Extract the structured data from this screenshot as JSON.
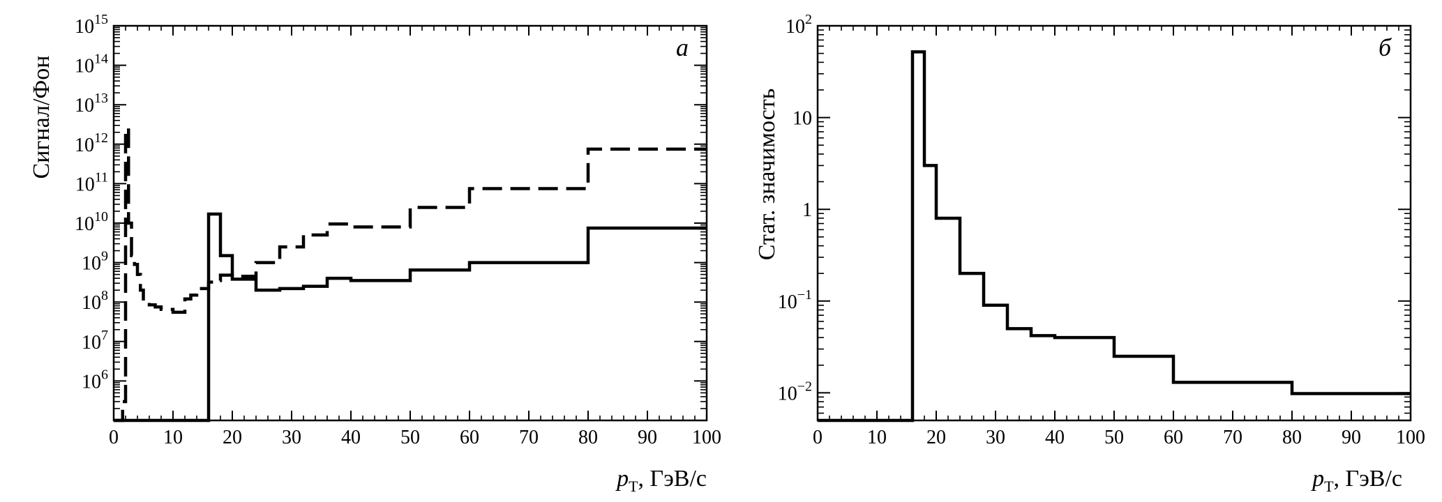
{
  "chart_data": [
    {
      "type": "line",
      "panel_label": "a",
      "xlabel": "p",
      "xlabel_sub": "T",
      "xlabel_unit": ", ГэВ/с",
      "ylabel": "Сигнал/Фон",
      "xlim": [
        0,
        100
      ],
      "ylim": [
        100000,
        1000000000000000
      ],
      "yscale": "log",
      "grid": false,
      "legend": "none",
      "x_ticks": [
        "0",
        "10",
        "20",
        "30",
        "40",
        "50",
        "60",
        "70",
        "80",
        "90",
        "100"
      ],
      "y_ticks": [
        {
          "base": "10",
          "exp": "6"
        },
        {
          "base": "10",
          "exp": "7"
        },
        {
          "base": "10",
          "exp": "8"
        },
        {
          "base": "10",
          "exp": "9"
        },
        {
          "base": "10",
          "exp": "10"
        },
        {
          "base": "10",
          "exp": "11"
        },
        {
          "base": "10",
          "exp": "12"
        },
        {
          "base": "10",
          "exp": "13"
        },
        {
          "base": "10",
          "exp": "14"
        },
        {
          "base": "10",
          "exp": "15"
        }
      ],
      "series": [
        {
          "style": "solid",
          "bins": [
            {
              "x0": 0,
              "x1": 16,
              "y": 100000
            },
            {
              "x0": 16,
              "x1": 18,
              "y": 17000000000
            },
            {
              "x0": 18,
              "x1": 20,
              "y": 1500000000
            },
            {
              "x0": 20,
              "x1": 24,
              "y": 380000000
            },
            {
              "x0": 24,
              "x1": 28,
              "y": 200000000
            },
            {
              "x0": 28,
              "x1": 32,
              "y": 220000000
            },
            {
              "x0": 32,
              "x1": 36,
              "y": 250000000
            },
            {
              "x0": 36,
              "x1": 40,
              "y": 400000000
            },
            {
              "x0": 40,
              "x1": 50,
              "y": 350000000
            },
            {
              "x0": 50,
              "x1": 60,
              "y": 650000000
            },
            {
              "x0": 60,
              "x1": 80,
              "y": 1000000000
            },
            {
              "x0": 80,
              "x1": 100,
              "y": 7500000000
            }
          ]
        },
        {
          "style": "dashed",
          "bins": [
            {
              "x0": 0,
              "x1": 1.5,
              "y": 100000
            },
            {
              "x0": 1.5,
              "x1": 2,
              "y": 300000
            },
            {
              "x0": 2,
              "x1": 2.5,
              "y": 2500000000000
            },
            {
              "x0": 2.5,
              "x1": 3,
              "y": 10000000000
            },
            {
              "x0": 3,
              "x1": 3.5,
              "y": 1500000000
            },
            {
              "x0": 3.5,
              "x1": 4,
              "y": 900000000
            },
            {
              "x0": 4,
              "x1": 4.5,
              "y": 500000000
            },
            {
              "x0": 4.5,
              "x1": 5,
              "y": 200000000
            },
            {
              "x0": 5,
              "x1": 6,
              "y": 100000000
            },
            {
              "x0": 6,
              "x1": 7,
              "y": 85000000
            },
            {
              "x0": 7,
              "x1": 8,
              "y": 75000000
            },
            {
              "x0": 8,
              "x1": 10,
              "y": 65000000
            },
            {
              "x0": 10,
              "x1": 12,
              "y": 55000000
            },
            {
              "x0": 12,
              "x1": 13,
              "y": 120000000
            },
            {
              "x0": 13,
              "x1": 14,
              "y": 150000000
            },
            {
              "x0": 14,
              "x1": 16,
              "y": 220000000
            },
            {
              "x0": 16,
              "x1": 17,
              "y": 320000000
            },
            {
              "x0": 17,
              "x1": 18,
              "y": 350000000
            },
            {
              "x0": 18,
              "x1": 20,
              "y": 480000000
            },
            {
              "x0": 20,
              "x1": 24,
              "y": 450000000
            },
            {
              "x0": 24,
              "x1": 26,
              "y": 1000000000
            },
            {
              "x0": 26,
              "x1": 28,
              "y": 1000000000
            },
            {
              "x0": 28,
              "x1": 30,
              "y": 2500000000
            },
            {
              "x0": 30,
              "x1": 32,
              "y": 2500000000
            },
            {
              "x0": 32,
              "x1": 36,
              "y": 5000000000
            },
            {
              "x0": 36,
              "x1": 40,
              "y": 9500000000
            },
            {
              "x0": 40,
              "x1": 50,
              "y": 8000000000
            },
            {
              "x0": 50,
              "x1": 60,
              "y": 25000000000
            },
            {
              "x0": 60,
              "x1": 80,
              "y": 75000000000
            },
            {
              "x0": 80,
              "x1": 100,
              "y": 750000000000
            }
          ]
        }
      ]
    },
    {
      "type": "line",
      "panel_label": "б",
      "xlabel": "p",
      "xlabel_sub": "T",
      "xlabel_unit": ", ГэВ/с",
      "ylabel": "Стат. значимость",
      "xlim": [
        0,
        100
      ],
      "ylim": [
        0.005,
        100
      ],
      "yscale": "log",
      "grid": false,
      "legend": "none",
      "x_ticks": [
        "0",
        "10",
        "20",
        "30",
        "40",
        "50",
        "60",
        "70",
        "80",
        "90",
        "100"
      ],
      "y_ticks": [
        {
          "value": 0.01,
          "base": "10",
          "exp": "−2"
        },
        {
          "value": 0.1,
          "base": "10",
          "exp": "−1"
        },
        {
          "value": 1,
          "base": "1",
          "exp": ""
        },
        {
          "value": 10,
          "base": "10",
          "exp": ""
        },
        {
          "value": 100,
          "base": "10",
          "exp": "2"
        }
      ],
      "series": [
        {
          "style": "solid",
          "bins": [
            {
              "x0": 0,
              "x1": 16,
              "y": 0.005
            },
            {
              "x0": 16,
              "x1": 18,
              "y": 52
            },
            {
              "x0": 18,
              "x1": 20,
              "y": 3
            },
            {
              "x0": 20,
              "x1": 24,
              "y": 0.8
            },
            {
              "x0": 24,
              "x1": 28,
              "y": 0.2
            },
            {
              "x0": 28,
              "x1": 32,
              "y": 0.09
            },
            {
              "x0": 32,
              "x1": 36,
              "y": 0.05
            },
            {
              "x0": 36,
              "x1": 40,
              "y": 0.042
            },
            {
              "x0": 40,
              "x1": 50,
              "y": 0.04
            },
            {
              "x0": 50,
              "x1": 60,
              "y": 0.025
            },
            {
              "x0": 60,
              "x1": 80,
              "y": 0.013
            },
            {
              "x0": 80,
              "x1": 100,
              "y": 0.0098
            }
          ]
        }
      ]
    }
  ]
}
